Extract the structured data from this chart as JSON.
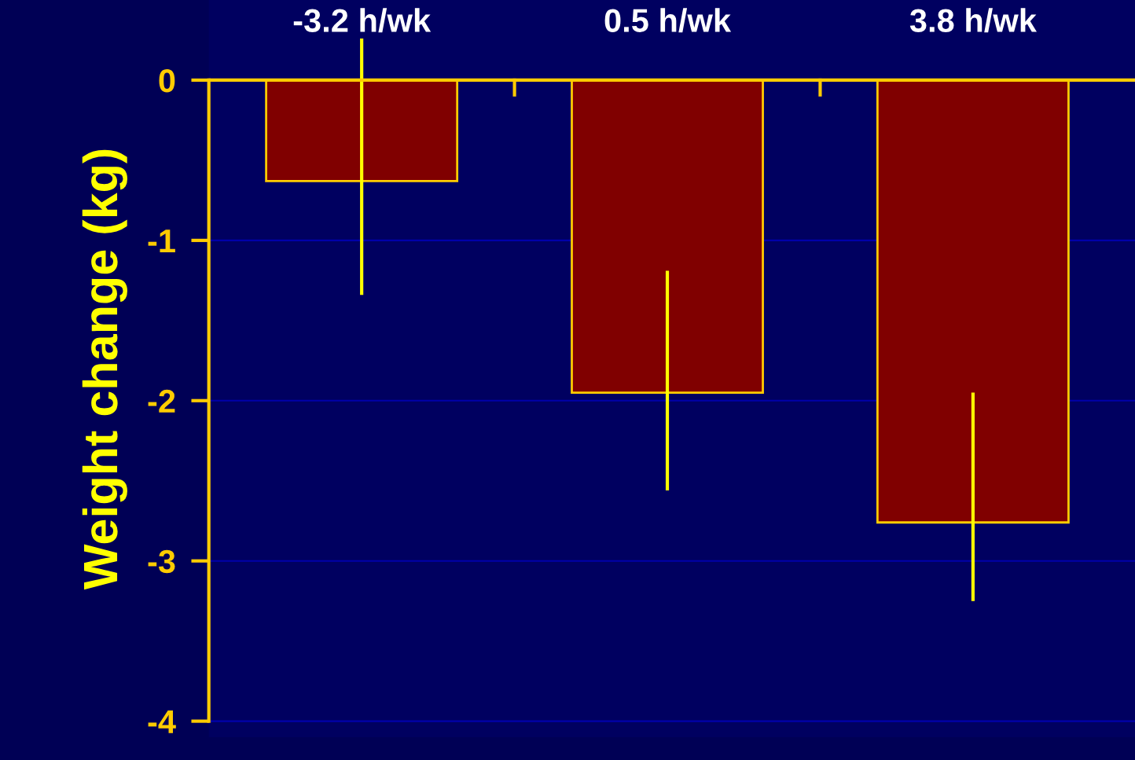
{
  "chart_data": {
    "type": "bar",
    "ylabel": "Weight change (kg)",
    "categories": [
      "-3.2 h/wk",
      "0.5 h/wk",
      "3.8 h/wk"
    ],
    "values": [
      -0.63,
      -1.95,
      -2.76
    ],
    "errors": [
      [
        -1.34,
        0.26
      ],
      [
        -2.56,
        -1.19
      ],
      [
        -3.25,
        -1.95
      ]
    ],
    "color": "#800000",
    "ylim": [
      -4.1,
      0.5
    ],
    "yticks": [
      {
        "value": 0,
        "label": "0"
      },
      {
        "value": -1,
        "label": "-1"
      },
      {
        "value": -2,
        "label": "-2"
      },
      {
        "value": -3,
        "label": "-3"
      },
      {
        "value": -4,
        "label": "-4"
      }
    ],
    "ref_lines": [
      {
        "axis": "y",
        "value": 0,
        "color": "#ffcc00"
      }
    ],
    "grid": "y"
  }
}
